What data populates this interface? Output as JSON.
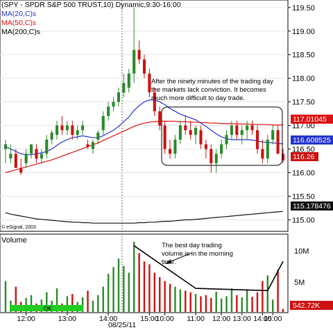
{
  "header": {
    "title": "(SPY - SPDR S&P 500 TRUST,10) Dynamic,9:30-16:00",
    "ma20": "MA(20,C)s",
    "ma50": "MA(50,C)s",
    "ma200": "MA(200,C)s",
    "copyright": "© eSignal, 2003"
  },
  "colors": {
    "up": "#2a8a2a",
    "down": "#cc1111",
    "ma20": "#2233cc",
    "ma50": "#dd1111",
    "ma200": "#111111",
    "ok_bar": "#22cc22"
  },
  "annotations": {
    "top": [
      "After the ninety minutes of the trading day",
      "the markets lack conviction. It becomes",
      "much more difficult to day trade."
    ],
    "bottom": [
      "The best day trading",
      "volume is in the morning",
      "time."
    ]
  },
  "volume_panel": {
    "title": "Volume",
    "ok_label": "OK",
    "last_label": "542.72K",
    "axis": [
      "10M",
      "5M"
    ]
  },
  "chart_data": {
    "type": "candlestick",
    "xlabel_date": "08/25/11",
    "price_axis": {
      "ylim": [
        114.8,
        119.6
      ],
      "ticks": [
        "115.00",
        "115.50",
        "116.00",
        "116.50",
        "117.00",
        "117.50",
        "118.00",
        "118.50",
        "119.00",
        "119.50"
      ]
    },
    "last_values": {
      "ma20": "116.608525",
      "ma50": "117.01045",
      "close": "116.26",
      "ma200": "115.178476"
    },
    "x_ticks": [
      "12:00",
      "13:00",
      "14:00",
      "15:00",
      "10:00",
      "11:00",
      "12:00",
      "13:00",
      "14:00",
      "15:00"
    ],
    "candles": [
      [
        116.5,
        116.7,
        116.2,
        116.6
      ],
      [
        116.3,
        116.6,
        116.2,
        116.4
      ],
      [
        116.4,
        116.5,
        116.1,
        116.1
      ],
      [
        116.1,
        116.3,
        115.95,
        116.0
      ],
      [
        116.2,
        116.5,
        116.1,
        116.4
      ],
      [
        116.4,
        116.6,
        116.3,
        116.6
      ],
      [
        116.5,
        116.6,
        116.2,
        116.3
      ],
      [
        116.3,
        116.5,
        116.2,
        116.4
      ],
      [
        116.4,
        116.8,
        116.3,
        116.7
      ],
      [
        116.7,
        116.9,
        116.6,
        116.85
      ],
      [
        116.8,
        117.1,
        116.7,
        117.0
      ],
      [
        117.0,
        117.2,
        116.8,
        116.9
      ],
      [
        116.9,
        117.1,
        116.8,
        117.0
      ],
      [
        117.0,
        117.1,
        116.7,
        116.8
      ],
      [
        116.8,
        117.0,
        116.7,
        116.9
      ],
      [
        116.9,
        117.1,
        116.8,
        117.0
      ],
      [
        116.6,
        116.7,
        116.5,
        116.55
      ],
      [
        116.5,
        116.7,
        116.4,
        116.65
      ],
      [
        116.7,
        116.9,
        116.6,
        116.85
      ],
      [
        116.9,
        117.3,
        116.8,
        117.2
      ],
      [
        117.2,
        117.5,
        117.1,
        117.4
      ],
      [
        117.4,
        117.6,
        117.3,
        117.5
      ],
      [
        117.5,
        117.8,
        117.4,
        117.7
      ],
      [
        117.7,
        118.1,
        117.6,
        117.9
      ],
      [
        117.8,
        118.2,
        117.7,
        118.1
      ],
      [
        118.1,
        119.5,
        117.9,
        118.6
      ],
      [
        118.6,
        118.8,
        118.3,
        118.4
      ],
      [
        118.4,
        118.5,
        118.0,
        118.1
      ],
      [
        118.1,
        118.2,
        117.6,
        117.7
      ],
      [
        117.7,
        117.8,
        117.2,
        117.3
      ],
      [
        117.3,
        117.4,
        116.9,
        117.0
      ],
      [
        117.0,
        117.1,
        116.4,
        116.5
      ],
      [
        116.5,
        116.7,
        116.3,
        116.4
      ],
      [
        116.4,
        116.8,
        116.3,
        116.7
      ],
      [
        116.7,
        117.1,
        116.6,
        117.0
      ],
      [
        117.0,
        117.2,
        116.8,
        116.9
      ],
      [
        116.9,
        117.1,
        116.7,
        116.8
      ],
      [
        116.8,
        117.0,
        116.6,
        116.95
      ],
      [
        116.9,
        117.0,
        116.5,
        116.6
      ],
      [
        116.6,
        116.7,
        116.3,
        116.5
      ],
      [
        116.5,
        116.6,
        116.0,
        116.2
      ],
      [
        116.2,
        116.5,
        116.0,
        116.4
      ],
      [
        116.4,
        116.7,
        116.3,
        116.6
      ],
      [
        116.6,
        116.9,
        116.5,
        116.8
      ],
      [
        116.8,
        117.1,
        116.7,
        117.0
      ],
      [
        117.0,
        117.1,
        116.7,
        116.8
      ],
      [
        116.8,
        117.0,
        116.6,
        116.9
      ],
      [
        116.9,
        117.1,
        116.7,
        117.0
      ],
      [
        117.0,
        117.1,
        116.8,
        116.9
      ],
      [
        116.9,
        117.0,
        116.4,
        116.5
      ],
      [
        116.5,
        116.7,
        116.2,
        116.3
      ],
      [
        116.3,
        116.8,
        116.2,
        116.7
      ],
      [
        116.7,
        117.0,
        116.6,
        116.9
      ],
      [
        116.9,
        117.0,
        116.4,
        116.4
      ],
      [
        116.4,
        116.5,
        116.2,
        116.26
      ]
    ],
    "ma20": [
      116.55,
      116.5,
      116.45,
      116.4,
      116.38,
      116.38,
      116.4,
      116.42,
      116.45,
      116.5,
      116.58,
      116.65,
      116.7,
      116.74,
      116.76,
      116.78,
      116.76,
      116.74,
      116.74,
      116.78,
      116.84,
      116.9,
      116.98,
      117.08,
      117.18,
      117.32,
      117.42,
      117.5,
      117.54,
      117.54,
      117.5,
      117.44,
      117.36,
      117.3,
      117.24,
      117.2,
      117.16,
      117.12,
      117.05,
      116.98,
      116.9,
      116.82,
      116.76,
      116.72,
      116.7,
      116.7,
      116.7,
      116.7,
      116.69,
      116.67,
      116.65,
      116.64,
      116.63,
      116.62,
      116.61
    ],
    "ma50": [
      116.0,
      116.03,
      116.06,
      116.09,
      116.12,
      116.15,
      116.18,
      116.21,
      116.24,
      116.27,
      116.31,
      116.35,
      116.39,
      116.43,
      116.47,
      116.51,
      116.55,
      116.59,
      116.63,
      116.68,
      116.73,
      116.78,
      116.83,
      116.88,
      116.93,
      116.98,
      117.02,
      117.05,
      117.07,
      117.08,
      117.09,
      117.09,
      117.09,
      117.09,
      117.08,
      117.08,
      117.07,
      117.07,
      117.06,
      117.06,
      117.05,
      117.05,
      117.04,
      117.04,
      117.04,
      117.03,
      117.03,
      117.03,
      117.02,
      117.02,
      117.02,
      117.02,
      117.01,
      117.01,
      117.01
    ],
    "ma200": [
      115.15,
      115.12,
      115.1,
      115.08,
      115.06,
      115.04,
      115.02,
      115.01,
      115.0,
      114.99,
      114.98,
      114.97,
      114.96,
      114.95,
      114.95,
      114.94,
      114.94,
      114.93,
      114.93,
      114.93,
      114.93,
      114.93,
      114.93,
      114.93,
      114.93,
      114.93,
      114.94,
      114.94,
      114.95,
      114.95,
      114.96,
      114.97,
      114.97,
      114.98,
      114.99,
      115.0,
      115.0,
      115.01,
      115.02,
      115.03,
      115.04,
      115.05,
      115.06,
      115.07,
      115.08,
      115.09,
      115.1,
      115.11,
      115.12,
      115.13,
      115.14,
      115.15,
      115.16,
      115.17,
      115.18
    ],
    "volume": [
      5.5,
      2.0,
      4.5,
      1.8,
      2.5,
      3.0,
      1.5,
      2.2,
      3.5,
      2.0,
      4.2,
      1.5,
      2.8,
      3.2,
      1.8,
      2.6,
      3.8,
      2.0,
      3.0,
      4.5,
      6.8,
      8.0,
      9.5,
      8.2,
      7.0,
      12.5,
      10.5,
      9.0,
      8.5,
      7.0,
      6.2,
      5.5,
      5.0,
      4.5,
      4.0,
      3.8,
      3.5,
      3.2,
      2.8,
      3.0,
      2.5,
      3.6,
      2.4,
      2.8,
      4.2,
      3.0,
      2.6,
      4.0,
      2.7,
      3.5,
      5.5,
      6.5,
      2.2,
      7.5,
      0.54
    ],
    "volume_trend": [
      [
        25,
        11.8
      ],
      [
        37,
        4.2
      ],
      [
        51,
        3.8
      ],
      [
        54,
        9.0
      ]
    ]
  }
}
